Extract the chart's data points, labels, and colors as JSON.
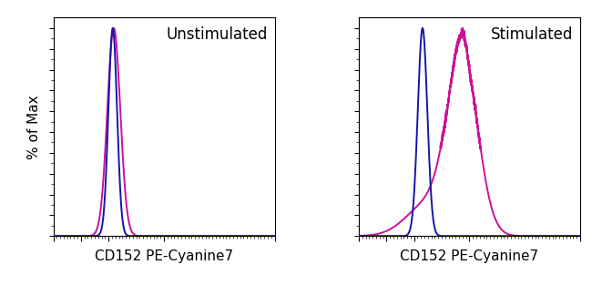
{
  "panel1_label": "Unstimulated",
  "panel2_label": "Stimulated",
  "xlabel": "CD152 PE-Cyanine7",
  "ylabel": "% of Max",
  "blue_color": "#1515aa",
  "magenta_color": "#cc1199",
  "bg_color": "#ffffff",
  "ylim": [
    0,
    1.05
  ],
  "xlim": [
    0,
    1024
  ],
  "label_fontsize": 11,
  "annotation_fontsize": 12,
  "linewidth": 1.4
}
